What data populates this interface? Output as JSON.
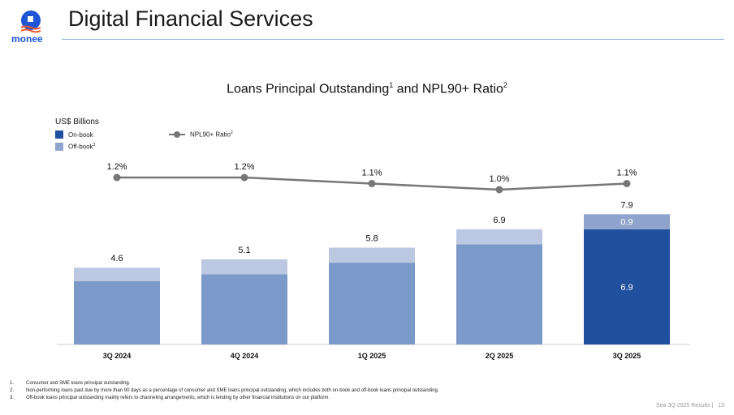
{
  "header": {
    "title": "Digital Financial Services",
    "logo_text": "monee"
  },
  "chart_data": {
    "type": "bar",
    "title": "Loans Principal Outstanding",
    "title_sup1": "1",
    "title_mid": " and NPL90+ Ratio",
    "title_sup2": "2",
    "ylabel": "US$ Billions",
    "categories": [
      "3Q 2024",
      "4Q 2024",
      "1Q 2025",
      "2Q 2025",
      "3Q 2025"
    ],
    "series": [
      {
        "name": "On-book",
        "values": [
          3.8,
          4.2,
          4.9,
          6.0,
          6.9
        ]
      },
      {
        "name": "Off-book",
        "sup": "3",
        "values": [
          0.8,
          0.9,
          0.9,
          0.9,
          0.9
        ]
      }
    ],
    "totals": [
      4.6,
      5.1,
      5.8,
      6.9,
      7.9
    ],
    "total_labels": [
      "4.6",
      "5.1",
      "5.8",
      "6.9",
      "7.9"
    ],
    "segment_labels": {
      "index": 4,
      "on": "6.9",
      "off": "0.9"
    },
    "line": {
      "name": "NPL90+ Ratio",
      "sup": "2",
      "values": [
        1.2,
        1.2,
        1.1,
        1.0,
        1.1
      ],
      "labels": [
        "1.2%",
        "1.2%",
        "1.1%",
        "1.0%",
        "1.1%"
      ]
    },
    "ylim": [
      0,
      8.3
    ],
    "legend": "top-left",
    "colors": {
      "on_book": "#7b9ac9",
      "off_book": "#bcc8e2",
      "on_book_highlight": "#21509f",
      "off_book_highlight": "#8fa4cc",
      "line": "#777777",
      "accent": "#2a62d6"
    }
  },
  "footnotes": [
    {
      "n": "1.",
      "text": "Consumer and SME loans principal outstanding."
    },
    {
      "n": "2.",
      "text": "Non-performing loans past due by more than 90 days as a percentage of consumer and SME loans principal outstanding, which includes both on-book and off-book loans principal outstanding."
    },
    {
      "n": "3.",
      "text": "Off-book loans principal outstanding mainly refers to channeling arrangements, which is lending by other financial institutions on our platform."
    }
  ],
  "footer": {
    "page_label": "Sea 3Q 2025 Results |",
    "page_number": "13"
  }
}
